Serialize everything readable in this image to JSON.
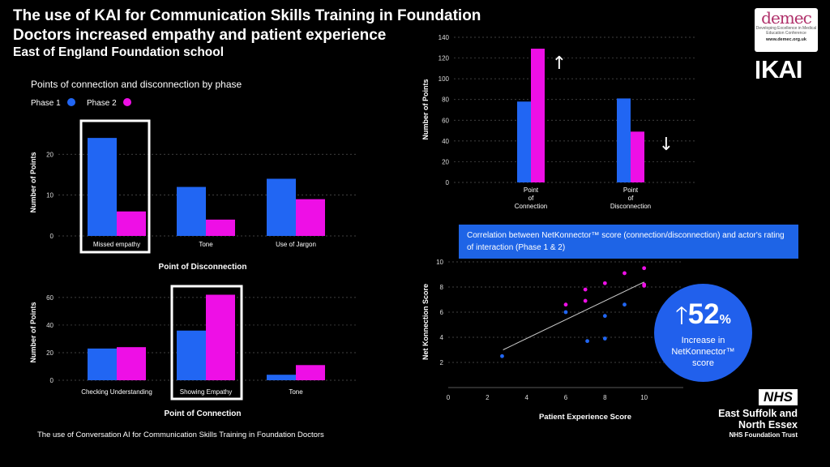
{
  "header": {
    "title_line1": "The use of KAI for Communication Skills Training in Foundation",
    "title_line2": "Doctors increased empathy and patient experience",
    "subtitle": "East of England Foundation school"
  },
  "logos": {
    "dmec_name": "demec",
    "dmec_tagline": "Developing Excellence in Medical Education Conference",
    "dmec_url": "www.demec.org.uk",
    "kai": "KAI",
    "nhs": "NHS",
    "trust_line1": "East Suffolk and",
    "trust_line2": "North Essex",
    "trust_line3": "NHS Foundation Trust"
  },
  "colors": {
    "phase1": "#2166f3",
    "phase2": "#ee0fe6",
    "accent_blue": "#1e64e6",
    "grid": "#555555"
  },
  "callout": {
    "text": "Correlation between NetKonnector™ score (connection/disconnection) and actor's rating of interaction (Phase 1 & 2)"
  },
  "highlight": {
    "value": "52",
    "unit": "%",
    "line1": "Increase in",
    "line2": "NetKonnector™",
    "line3": "score"
  },
  "footer": {
    "text": "The use of Conversation AI for Communication Skills Training in Foundation Doctors"
  },
  "chart_data": [
    {
      "id": "disconnection",
      "type": "bar",
      "title": "Points of connection and disconnection by phase",
      "legend": [
        "Phase 1",
        "Phase 2"
      ],
      "categories": [
        "Missed empathy",
        "Tone",
        "Use of Jargon"
      ],
      "series": [
        {
          "name": "Phase 1",
          "values": [
            24,
            12,
            14
          ]
        },
        {
          "name": "Phase 2",
          "values": [
            6,
            4,
            9
          ]
        }
      ],
      "xlabel": "Point of Disconnection",
      "ylabel": "Number of Points",
      "ylim": [
        0,
        27
      ],
      "yticks": [
        0,
        10,
        20
      ],
      "highlighted_category": "Missed empathy"
    },
    {
      "id": "connection",
      "type": "bar",
      "categories": [
        "Checking Understanding",
        "Showing Empathy",
        "Tone"
      ],
      "series": [
        {
          "name": "Phase 1",
          "values": [
            23,
            36,
            4
          ]
        },
        {
          "name": "Phase 2",
          "values": [
            24,
            62,
            11
          ]
        }
      ],
      "xlabel": "Point of Connection",
      "ylabel": "Number of Points",
      "ylim": [
        0,
        67
      ],
      "yticks": [
        0,
        20,
        40,
        60
      ],
      "highlighted_category": "Showing Empathy"
    },
    {
      "id": "totals",
      "type": "bar",
      "categories": [
        "Point of Connection",
        "Point of Disconnection"
      ],
      "series": [
        {
          "name": "Phase 1",
          "values": [
            78,
            81
          ]
        },
        {
          "name": "Phase 2",
          "values": [
            129,
            49
          ]
        }
      ],
      "ylabel": "Number of Points",
      "ylim": [
        0,
        140
      ],
      "yticks": [
        0,
        20,
        40,
        60,
        80,
        100,
        120,
        140
      ],
      "arrows": [
        "up",
        "down"
      ]
    },
    {
      "id": "correlation",
      "type": "scatter",
      "xlabel": "Patient Experience Score",
      "ylabel": "Net Konnection Score",
      "xlim": [
        0,
        12
      ],
      "ylim": [
        0,
        10
      ],
      "xticks": [
        0,
        2,
        4,
        6,
        8,
        10
      ],
      "yticks": [
        2,
        4,
        6,
        8,
        10
      ],
      "series": [
        {
          "name": "Phase 1",
          "points": [
            [
              2.75,
              2.5
            ],
            [
              6,
              6
            ],
            [
              7.1,
              3.7
            ],
            [
              8,
              3.9
            ],
            [
              8,
              5.7
            ],
            [
              9,
              6.6
            ]
          ]
        },
        {
          "name": "Phase 2",
          "points": [
            [
              6,
              6.6
            ],
            [
              7,
              6.9
            ],
            [
              7,
              7.8
            ],
            [
              8,
              8.3
            ],
            [
              9,
              9.1
            ],
            [
              10,
              9.5
            ],
            [
              10,
              8.2
            ],
            [
              10,
              8.1
            ]
          ]
        }
      ],
      "trendline": [
        [
          2.8,
          3.0
        ],
        [
          10,
          8.4
        ]
      ]
    }
  ]
}
